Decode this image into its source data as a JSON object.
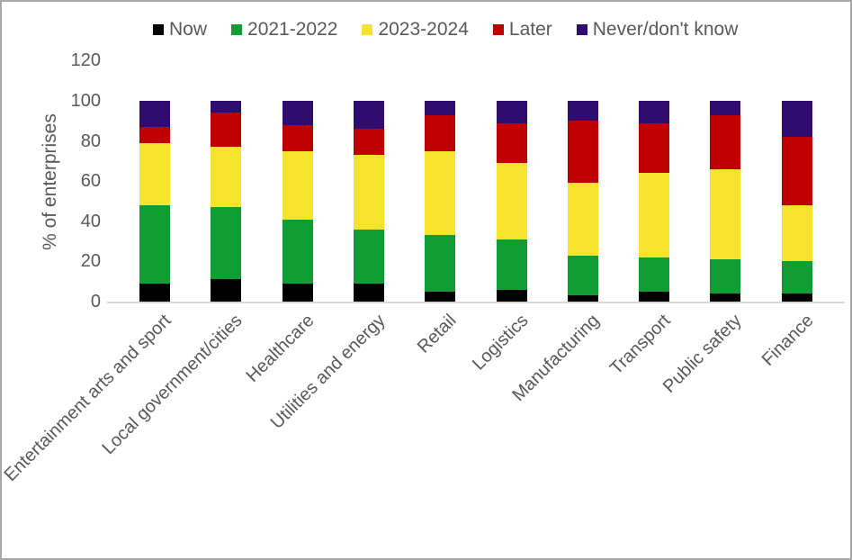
{
  "chart_data": {
    "type": "bar",
    "stacked": true,
    "title": "",
    "xlabel": "",
    "ylabel": "% of enterprises",
    "ylim": [
      0,
      120
    ],
    "yticks": [
      0,
      20,
      40,
      60,
      80,
      100,
      120
    ],
    "grid": false,
    "legend_position": "top",
    "categories": [
      "Entertainment arts and sport",
      "Local government/cities",
      "Healthcare",
      "Utilities and energy",
      "Retail",
      "Logistics",
      "Manufacturing",
      "Transport",
      "Public safety",
      "Finance"
    ],
    "series": [
      {
        "name": "Now",
        "color": "#000000",
        "values": [
          9,
          11,
          9,
          9,
          5,
          6,
          3,
          5,
          4,
          4
        ]
      },
      {
        "name": "2021-2022",
        "color": "#0f9d34",
        "values": [
          39,
          36,
          32,
          27,
          28,
          25,
          20,
          17,
          17,
          16
        ]
      },
      {
        "name": "2023-2024",
        "color": "#f6e32b",
        "values": [
          31,
          30,
          34,
          37,
          42,
          38,
          36,
          42,
          45,
          28
        ]
      },
      {
        "name": "Later",
        "color": "#c00000",
        "values": [
          8,
          17,
          13,
          13,
          18,
          20,
          31,
          25,
          27,
          34
        ]
      },
      {
        "name": "Never/don't know",
        "color": "#2e0d6e",
        "values": [
          13,
          6,
          12,
          14,
          7,
          11,
          10,
          11,
          7,
          18
        ]
      }
    ]
  }
}
